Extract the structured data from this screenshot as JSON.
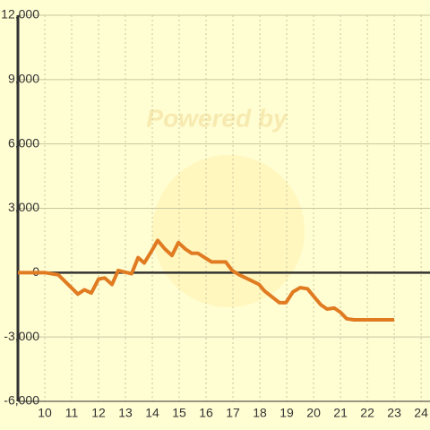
{
  "chart_data": {
    "type": "line",
    "watermark": "Powered by",
    "x": [
      9.0,
      10,
      10.5,
      11.23,
      11.47,
      11.73,
      12.0,
      12.23,
      12.5,
      12.73,
      13.23,
      13.47,
      13.7,
      13.97,
      14.2,
      14.47,
      14.73,
      14.97,
      15.23,
      15.47,
      15.7,
      16.2,
      16.73,
      16.97,
      17.23,
      17.73,
      17.97,
      18.17,
      18.47,
      18.73,
      18.97,
      19.23,
      19.5,
      19.77,
      20.0,
      20.27,
      20.5,
      20.77,
      21.0,
      21.23,
      21.5,
      23.0
    ],
    "series": [
      {
        "color": "#e07b22",
        "values": [
          0,
          0,
          -100,
          -1000,
          -800,
          -950,
          -300,
          -250,
          -550,
          100,
          -50,
          700,
          450,
          1000,
          1500,
          1100,
          800,
          1400,
          1100,
          900,
          900,
          500,
          500,
          100,
          -100,
          -400,
          -550,
          -850,
          -1150,
          -1400,
          -1400,
          -900,
          -700,
          -750,
          -1100,
          -1500,
          -1700,
          -1650,
          -1850,
          -2150,
          -2200,
          -2200
        ]
      }
    ],
    "xlim": [
      9,
      24.33
    ],
    "xticks": [
      10,
      11,
      12,
      13,
      14,
      15,
      16,
      17,
      18,
      19,
      20,
      21,
      22,
      23,
      24
    ],
    "ylim": [
      -6000,
      12000
    ],
    "yticks": [
      {
        "value": -6000,
        "label": "-6,000"
      },
      {
        "value": -3000,
        "label": "-3,000"
      },
      0,
      {
        "value": 3000,
        "label": "3,000"
      },
      {
        "value": 6000,
        "label": "6,000"
      },
      {
        "value": 9000,
        "label": "9,000"
      },
      {
        "value": 12000,
        "label": "12,000"
      }
    ],
    "grid": true
  }
}
